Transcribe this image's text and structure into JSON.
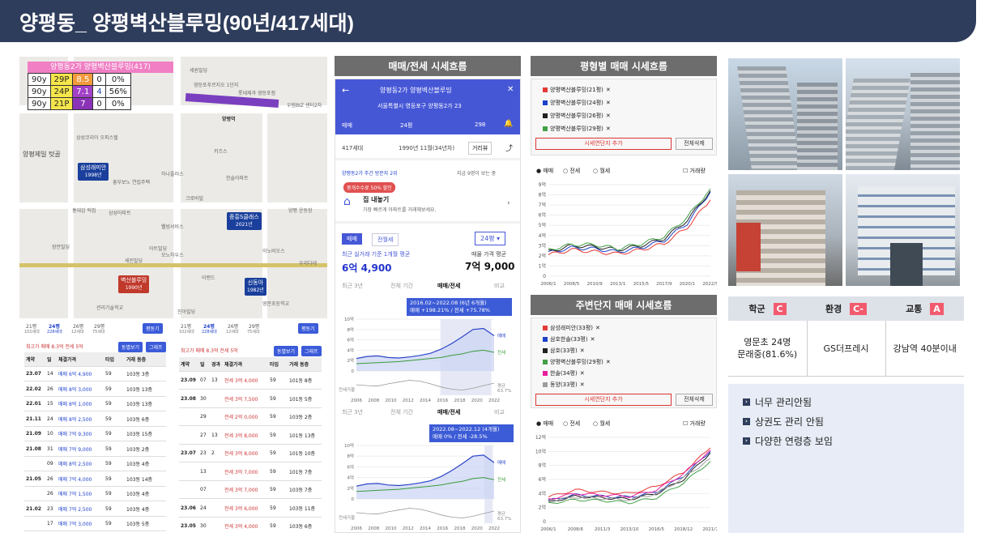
{
  "title": "양평동_ 양평벽산블루밍(90년/417세대)",
  "map": {
    "table_title": "양평동2가 양평벽산블루밍(417)",
    "rows": [
      [
        "90y",
        "29P",
        "8.5",
        "0",
        "0%"
      ],
      [
        "90y",
        "24P",
        "7.1",
        "4",
        "56%"
      ],
      [
        "90y",
        "21P",
        "7",
        "0",
        "0%"
      ]
    ],
    "pois": [
      "세원빌딩",
      "양평역",
      "영등포푸르지오 1단지",
      "우림BIZ 센터2차",
      "삼성코리아 오피스텔",
      "롯데제과 영등포점",
      "키즈스",
      "양평제일 텃골",
      "홍대감 떡집",
      "흥부보노 연립주택",
      "하나플러스",
      "크로바빌",
      "양평 운동장",
      "웰빙서비스",
      "모노하우스",
      "세린빌딩",
      "이랜드",
      "영문초등학교",
      "관리기술학교",
      "장안빌딩",
      "삼성아파트",
      "아트빌딩",
      "이노비오스",
      "우리다네",
      "한솔아파트",
      "진아빌딩"
    ],
    "pins": [
      {
        "name": "삼성래미안",
        "year": "1998년"
      },
      {
        "name": "중흥S클래스",
        "year": "2021년"
      },
      {
        "name": "벽산블루밍",
        "year": "1990년"
      },
      {
        "name": "신동아",
        "year": "1982년"
      }
    ]
  },
  "tx_left": {
    "tabs": [
      "21평",
      "24평",
      "26평",
      "29평"
    ],
    "subtabs": [
      "102세대",
      "228세대",
      "12세대",
      "75세대"
    ],
    "btn": "평동기",
    "summary": "최고가 매매 8.3억   전세 5억",
    "btns": [
      "동별보기",
      "그래프"
    ],
    "headers": [
      "계약",
      "일",
      "체결가격",
      "타입",
      "거래 동층"
    ],
    "rows": [
      [
        "23.07",
        "14",
        "매매 6억 4,900",
        "59",
        "103동 3층"
      ],
      [
        "22.02",
        "26",
        "매매 8억 3,000",
        "59",
        "103동 13층"
      ],
      [
        "22.01",
        "15",
        "매매 8억 1,000",
        "59",
        "103동 13층"
      ],
      [
        "21.11",
        "24",
        "매매 8억 2,500",
        "59",
        "103동 6층"
      ],
      [
        "21.09",
        "10",
        "매매 7억 9,300",
        "59",
        "103동 15층"
      ],
      [
        "21.08",
        "31",
        "매매 7억 9,000",
        "59",
        "103동 2층"
      ],
      [
        "",
        "09",
        "매매 8억 2,500",
        "59",
        "103동 4층"
      ],
      [
        "21.05",
        "26",
        "매매 7억 4,000",
        "59",
        "103동 14층"
      ],
      [
        "",
        "26",
        "매매 7억 1,500",
        "59",
        "103동 4층"
      ],
      [
        "21.02",
        "23",
        "매매 7억 2,500",
        "59",
        "103동 4층"
      ],
      [
        "",
        "17",
        "매매 7억 3,000",
        "59",
        "103동 5층"
      ]
    ],
    "maxtag": "최고가"
  },
  "tx_right": {
    "tabs": [
      "21평",
      "24평",
      "26평",
      "29평"
    ],
    "subtabs": [
      "102세대",
      "228세대",
      "12세대",
      "75세대"
    ],
    "btn": "평동기",
    "summary": "최고가 매매 8.3억   전세 5억",
    "btns": [
      "동별보기",
      "그래프"
    ],
    "headers": [
      "계약",
      "일",
      "경과",
      "체결가격",
      "타입",
      "거래 동층"
    ],
    "rows": [
      [
        "23.09",
        "07",
        "13",
        "전세 3억 4,000",
        "59",
        "101동 8층"
      ],
      [
        "23.08",
        "30",
        "",
        "전세 3억 7,500",
        "59",
        "101동 5층"
      ],
      [
        "",
        "29",
        "",
        "전세 2억 0,000",
        "59",
        "103동 2층"
      ],
      [
        "",
        "27",
        "13",
        "전세 3억 8,000",
        "59",
        "101동 13층"
      ],
      [
        "23.07",
        "23",
        "2",
        "전세 3억 8,000",
        "59",
        "101동 10층"
      ],
      [
        "",
        "13",
        "",
        "전세 3억 7,000",
        "59",
        "101동 7층"
      ],
      [
        "",
        "07",
        "",
        "전세 3억 7,000",
        "59",
        "103동 7층"
      ],
      [
        "23.06",
        "24",
        "",
        "전세 3억 6,000",
        "59",
        "103동 11층"
      ],
      [
        "23.05",
        "30",
        "",
        "전세 3억 4,000",
        "59",
        "103동 6층"
      ]
    ],
    "renew": "갱신"
  },
  "app": {
    "panel_title": "매매/전세 시세흐름",
    "name": "양평동2가 양평벽산블루밍",
    "address": "서울특별시 영등포구 양평동2가 23",
    "filters": [
      "매매",
      "24평",
      "298"
    ],
    "households": "417세대",
    "built": "1990년 11월(34년차)",
    "review": "거리뷰",
    "visitors": "양평동2가 주간 방문자 2위",
    "visitors_now": "지금 9명이 보는 중",
    "promo": "중개수수료 50% 할인",
    "sell_title": "집 내놓기",
    "sell_sub": "가장 빠르게 아파트를 거래해보세요.",
    "tabs": [
      "매매",
      "전월세"
    ],
    "size": "24평",
    "recent_label": "최근 실거래 기준 1개월 평균",
    "recent_value": "6억 4,900",
    "ask_label": "매물 가격 평균",
    "ask_value": "7억 9,000",
    "periods": [
      "최근 3년",
      "전체 기간",
      "매매/전세",
      "비교"
    ],
    "tip1": "2016.02~2022.08 (6년 6개월)",
    "tip1b": "매매 +198.21% / 전세 +75.78%",
    "tip2": "2022.08~2022.12 (4개월)",
    "tip2b": "매매 0% / 전세 -28.5%",
    "chart_labels": [
      "매매",
      "전세",
      "평균",
      "63.7%",
      "전세가율"
    ],
    "years": [
      "2006",
      "2008",
      "2010",
      "2012",
      "2014",
      "2016",
      "2018",
      "2020",
      "2022"
    ],
    "yticks": [
      "10억",
      "8억",
      "6억",
      "4억",
      "2억",
      "0"
    ]
  },
  "cmp1": {
    "panel_title": "평형별 매매 시세흐름",
    "legend": [
      {
        "name": "양평벽산블루밍(21평)",
        "color": "#e53935"
      },
      {
        "name": "양평벽산블루밍(24평)",
        "color": "#1e40c8"
      },
      {
        "name": "양평벽산블루밍(26평)",
        "color": "#222222"
      },
      {
        "name": "양평벽산블루밍(29평)",
        "color": "#43a047"
      }
    ],
    "add": "시세연단지 추가",
    "clear": "전체삭제",
    "radios": [
      "매매",
      "전세",
      "월세"
    ],
    "check": "거래량",
    "yticks": [
      "9억",
      "8억",
      "7억",
      "6억",
      "5억",
      "4억",
      "3억",
      "2억",
      "1억",
      "0"
    ],
    "xticks": [
      "2006/1",
      "2008/5",
      "2010/9",
      "2013/1",
      "2015/5",
      "2017/9",
      "2020/1",
      "2022/5"
    ]
  },
  "cmp2": {
    "panel_title": "주변단지 매매 시세흐름",
    "legend": [
      {
        "name": "삼성래미안(33평)",
        "color": "#e53935"
      },
      {
        "name": "삼호한솔(33평)",
        "color": "#1e40c8"
      },
      {
        "name": "삼호(33평)",
        "color": "#222222"
      },
      {
        "name": "양평벽산블루밍(29평)",
        "color": "#43a047"
      },
      {
        "name": "한솔(34평)",
        "color": "#e91e9c"
      },
      {
        "name": "동양(33평)",
        "color": "#9e9e9e"
      }
    ],
    "add": "시세연단지 추가",
    "clear": "전체삭제",
    "radios": [
      "매매",
      "전세",
      "월세"
    ],
    "check": "거래량",
    "yticks": [
      "12억",
      "10억",
      "8억",
      "6억",
      "4억",
      "2억",
      "0"
    ],
    "xticks": [
      "2006/1",
      "2008/6",
      "2011/3",
      "2013/10",
      "2016/5",
      "2018/12",
      "2021/7"
    ]
  },
  "chart_data": [
    {
      "type": "line",
      "title": "평형별 매매 시세흐름",
      "x": [
        "2006/1",
        "2008/5",
        "2010/9",
        "2013/1",
        "2015/5",
        "2017/9",
        "2020/1",
        "2022/5"
      ],
      "ylabel": "억",
      "ylim": [
        0,
        9
      ],
      "series": [
        {
          "name": "양평벽산블루밍(21평)",
          "values": [
            2.1,
            2.6,
            2.4,
            2.2,
            2.6,
            3.2,
            4.8,
            7.5
          ]
        },
        {
          "name": "양평벽산블루밍(24평)",
          "values": [
            2.3,
            2.8,
            2.7,
            2.4,
            2.8,
            3.5,
            5.2,
            8.3
          ]
        },
        {
          "name": "양평벽산블루밍(26평)",
          "values": [
            2.4,
            3.0,
            2.9,
            2.6,
            3.0,
            3.7,
            5.5,
            8.4
          ]
        },
        {
          "name": "양평벽산블루밍(29평)",
          "values": [
            2.6,
            3.1,
            3.1,
            2.7,
            3.2,
            3.9,
            5.8,
            8.6
          ]
        }
      ]
    },
    {
      "type": "line",
      "title": "주변단지 매매 시세흐름",
      "x": [
        "2006/1",
        "2008/6",
        "2011/3",
        "2013/10",
        "2016/5",
        "2018/12",
        "2021/7"
      ],
      "ylabel": "억",
      "ylim": [
        0,
        12
      ],
      "series": [
        {
          "name": "삼성래미안(33평)",
          "values": [
            3.5,
            4.5,
            4.2,
            4.0,
            5.0,
            7.0,
            10.5
          ]
        },
        {
          "name": "삼호한솔(33평)",
          "values": [
            3.0,
            3.8,
            3.6,
            3.5,
            4.2,
            6.5,
            10.0
          ]
        },
        {
          "name": "삼호(33평)",
          "values": [
            2.8,
            3.6,
            3.4,
            3.2,
            4.0,
            6.0,
            9.8
          ]
        },
        {
          "name": "양평벽산블루밍(29평)",
          "values": [
            2.6,
            3.1,
            3.0,
            2.7,
            3.4,
            5.5,
            8.6
          ]
        },
        {
          "name": "한솔(34평)",
          "values": [
            3.2,
            4.0,
            3.8,
            3.6,
            4.5,
            6.8,
            10.2
          ]
        },
        {
          "name": "동양(33평)",
          "values": [
            2.9,
            3.5,
            3.3,
            3.1,
            4.0,
            6.2,
            9.0
          ]
        }
      ]
    }
  ],
  "info": {
    "headers": [
      {
        "label": "학군",
        "grade": "C"
      },
      {
        "label": "환경",
        "grade": "C-"
      },
      {
        "label": "교통",
        "grade": "A"
      }
    ],
    "cells": [
      "영문초 24명\n문래중(81.6%)",
      "GS더프레시",
      "강남역 40분이내"
    ]
  },
  "notes": [
    "너무 관리안됨",
    "상권도 관리 안됨",
    "다양한 연령층 보임"
  ],
  "colors": {
    "header": "#2f3d5c",
    "accent": "#3b5bd9",
    "grade": "#f25a6e"
  }
}
